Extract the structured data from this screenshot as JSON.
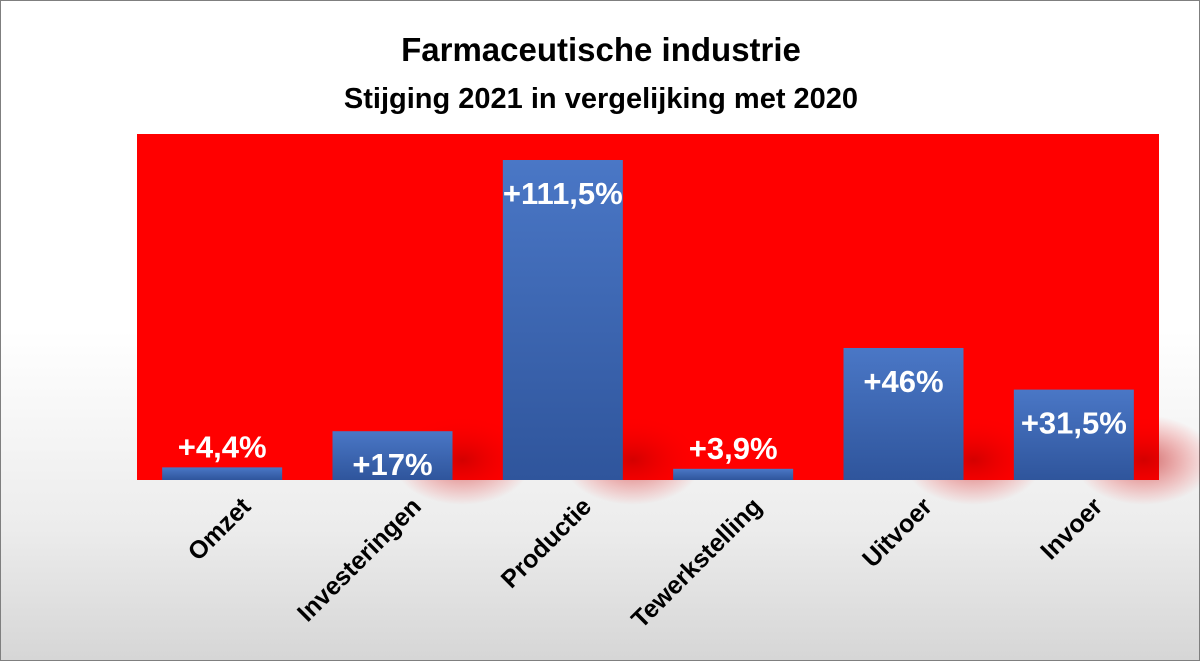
{
  "chart_data": {
    "type": "bar",
    "title": "Farmaceutische industrie",
    "subtitle": "Stijging 2021 in vergelijking met 2020",
    "categories": [
      "Omzet",
      "Investeringen",
      "Productie",
      "Tewerkstelling",
      "Uitvoer",
      "Invoer"
    ],
    "values": [
      4.4,
      17,
      111.5,
      3.9,
      46,
      31.5
    ],
    "data_labels": [
      "+4,4%",
      "+17%",
      "+111,5%",
      "+3,9%",
      "+46%",
      "+31,5%"
    ],
    "xlabel": "",
    "ylabel": "",
    "ylim": [
      0,
      120
    ],
    "grid": false,
    "legend": "none",
    "colors": {
      "plot_background": "#ff0000",
      "bar_top": "#4a77c6",
      "bar_bottom": "#2f559c",
      "label_text": "#ffffff",
      "axis_text": "#000000"
    }
  }
}
